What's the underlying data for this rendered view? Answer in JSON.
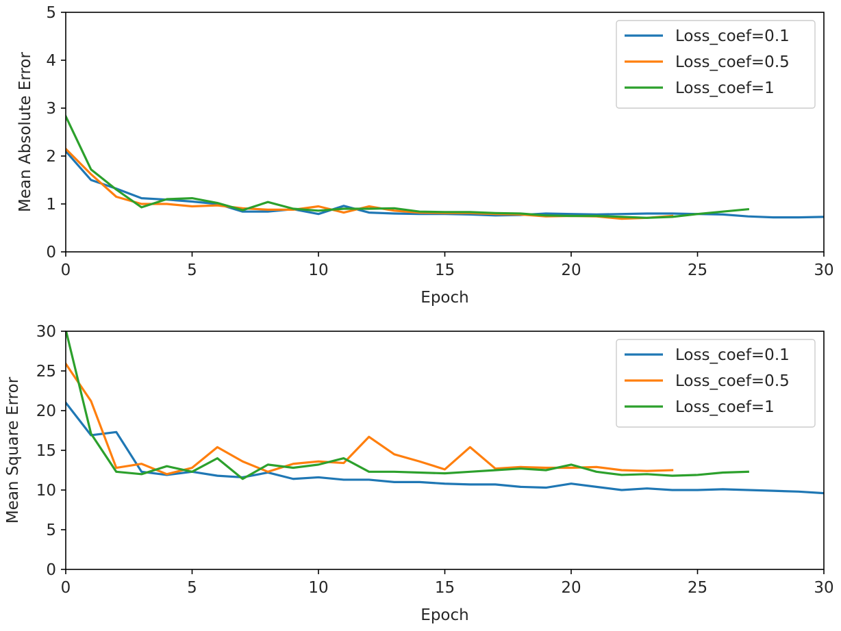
{
  "chart_data": [
    {
      "type": "line",
      "xlabel": "Epoch",
      "ylabel": "Mean Absolute Error",
      "xlim": [
        0,
        30
      ],
      "ylim": [
        0,
        5
      ],
      "xticks": [
        0,
        5,
        10,
        15,
        20,
        25,
        30
      ],
      "yticks": [
        0,
        1,
        2,
        3,
        4,
        5
      ],
      "grid": false,
      "legend_position": "top-right",
      "series": [
        {
          "name": "Loss_coef=0.1",
          "color": "#1f77b4",
          "x": [
            0,
            1,
            2,
            3,
            4,
            5,
            6,
            7,
            8,
            9,
            10,
            11,
            12,
            13,
            14,
            15,
            16,
            17,
            18,
            19,
            20,
            21,
            22,
            23,
            24,
            25,
            26,
            27,
            28,
            29,
            30
          ],
          "values": [
            2.1,
            1.5,
            1.32,
            1.12,
            1.09,
            1.05,
            1.0,
            0.84,
            0.84,
            0.89,
            0.79,
            0.96,
            0.82,
            0.8,
            0.79,
            0.79,
            0.78,
            0.76,
            0.77,
            0.8,
            0.79,
            0.78,
            0.79,
            0.8,
            0.8,
            0.79,
            0.78,
            0.74,
            0.72,
            0.72,
            0.73
          ]
        },
        {
          "name": "Loss_coef=0.5",
          "color": "#ff7f0e",
          "x": [
            0,
            1,
            2,
            3,
            4,
            5,
            6,
            7,
            8,
            9,
            10,
            11,
            12,
            13,
            14,
            15,
            16,
            17,
            18,
            19,
            20,
            21,
            22,
            23,
            24
          ],
          "values": [
            2.15,
            1.62,
            1.15,
            1.0,
            1.0,
            0.95,
            0.97,
            0.91,
            0.88,
            0.88,
            0.95,
            0.82,
            0.95,
            0.86,
            0.82,
            0.81,
            0.81,
            0.79,
            0.78,
            0.74,
            0.75,
            0.74,
            0.69,
            0.71,
            0.75
          ]
        },
        {
          "name": "Loss_coef=1",
          "color": "#2ca02c",
          "x": [
            0,
            1,
            2,
            3,
            4,
            5,
            6,
            7,
            8,
            9,
            10,
            11,
            12,
            13,
            14,
            15,
            16,
            17,
            18,
            19,
            20,
            21,
            22,
            23,
            24,
            25,
            26,
            27
          ],
          "values": [
            2.83,
            1.72,
            1.3,
            0.93,
            1.1,
            1.12,
            1.02,
            0.87,
            1.04,
            0.9,
            0.86,
            0.9,
            0.9,
            0.91,
            0.84,
            0.83,
            0.83,
            0.81,
            0.8,
            0.76,
            0.75,
            0.75,
            0.73,
            0.71,
            0.73,
            0.79,
            0.84,
            0.89
          ]
        }
      ]
    },
    {
      "type": "line",
      "xlabel": "Epoch",
      "ylabel": "Mean Square Error",
      "xlim": [
        0,
        30
      ],
      "ylim": [
        0,
        30
      ],
      "xticks": [
        0,
        5,
        10,
        15,
        20,
        25,
        30
      ],
      "yticks": [
        0,
        5,
        10,
        15,
        20,
        25,
        30
      ],
      "grid": false,
      "legend_position": "top-right",
      "series": [
        {
          "name": "Loss_coef=0.1",
          "color": "#1f77b4",
          "x": [
            0,
            1,
            2,
            3,
            4,
            5,
            6,
            7,
            8,
            9,
            10,
            11,
            12,
            13,
            14,
            15,
            16,
            17,
            18,
            19,
            20,
            21,
            22,
            23,
            24,
            25,
            26,
            27,
            28,
            29,
            30
          ],
          "values": [
            21.0,
            16.9,
            17.3,
            12.3,
            11.9,
            12.3,
            11.8,
            11.6,
            12.2,
            11.4,
            11.6,
            11.3,
            11.3,
            11.0,
            11.0,
            10.8,
            10.7,
            10.7,
            10.4,
            10.3,
            10.8,
            10.4,
            10.0,
            10.2,
            10.0,
            10.0,
            10.1,
            10.0,
            9.9,
            9.8,
            9.6
          ]
        },
        {
          "name": "Loss_coef=0.5",
          "color": "#ff7f0e",
          "x": [
            0,
            1,
            2,
            3,
            4,
            5,
            6,
            7,
            8,
            9,
            10,
            11,
            12,
            13,
            14,
            15,
            16,
            17,
            18,
            19,
            20,
            21,
            22,
            23,
            24
          ],
          "values": [
            25.9,
            21.2,
            12.8,
            13.3,
            12.0,
            12.8,
            15.4,
            13.6,
            12.3,
            13.3,
            13.6,
            13.4,
            16.7,
            14.5,
            13.6,
            12.6,
            15.4,
            12.7,
            12.9,
            12.8,
            12.8,
            12.9,
            12.5,
            12.4,
            12.5
          ]
        },
        {
          "name": "Loss_coef=1",
          "color": "#2ca02c",
          "x": [
            0,
            1,
            2,
            3,
            4,
            5,
            6,
            7,
            8,
            9,
            10,
            11,
            12,
            13,
            14,
            15,
            16,
            17,
            18,
            19,
            20,
            21,
            22,
            23,
            24,
            25,
            26,
            27
          ],
          "values": [
            30.2,
            17.1,
            12.3,
            12.0,
            13.0,
            12.3,
            14.0,
            11.4,
            13.2,
            12.8,
            13.2,
            14.0,
            12.3,
            12.3,
            12.2,
            12.1,
            12.3,
            12.5,
            12.7,
            12.5,
            13.2,
            12.3,
            11.9,
            12.0,
            11.8,
            11.9,
            12.2,
            12.3
          ]
        }
      ]
    }
  ]
}
